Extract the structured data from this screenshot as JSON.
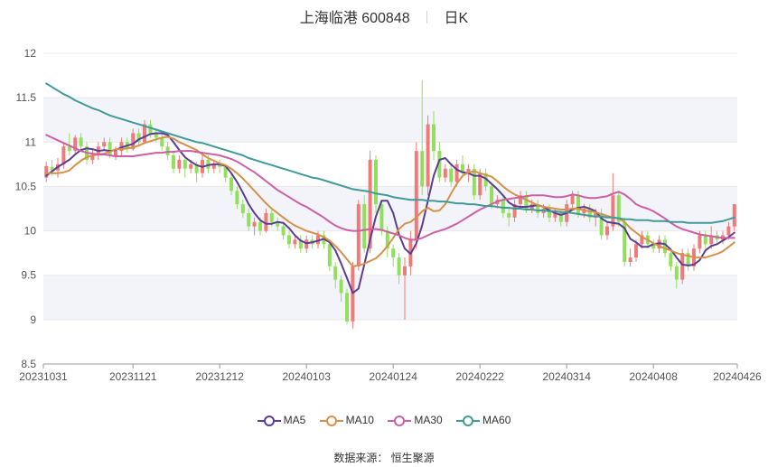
{
  "header": {
    "stock_name": "上海临港",
    "stock_code": "600848",
    "period": "日K"
  },
  "legend": [
    {
      "name": "MA5",
      "color": "#5b3d93"
    },
    {
      "name": "MA10",
      "color": "#d6904a"
    },
    {
      "name": "MA30",
      "color": "#cc5fa6"
    },
    {
      "name": "MA60",
      "color": "#3f9a99"
    }
  ],
  "footer": {
    "source_label": "数据来源：",
    "source_value": "恒生聚源"
  },
  "colors": {
    "up": "#f07a7a",
    "down": "#91e05c",
    "grid": "#e8e8e8",
    "band": "#f3f4f9"
  },
  "chart_data": {
    "type": "candlestick",
    "ylim": [
      8.5,
      12
    ],
    "yticks": [
      "8.5",
      "9",
      "9.5",
      "10",
      "10.5",
      "11",
      "11.5",
      "12"
    ],
    "x_labels": [
      {
        "index": 0,
        "label": "20231031"
      },
      {
        "index": 15,
        "label": "20231121"
      },
      {
        "index": 30,
        "label": "20231212"
      },
      {
        "index": 45,
        "label": "20240103"
      },
      {
        "index": 60,
        "label": "20240124"
      },
      {
        "index": 75,
        "label": "20240222"
      },
      {
        "index": 90,
        "label": "20240314"
      },
      {
        "index": 105,
        "label": "20240408"
      },
      {
        "index": 119,
        "label": "20240426"
      }
    ],
    "candles": [
      [
        10.6,
        10.73,
        10.55,
        10.78
      ],
      [
        10.72,
        10.68,
        10.62,
        10.8
      ],
      [
        10.68,
        10.75,
        10.6,
        10.82
      ],
      [
        10.75,
        10.95,
        10.7,
        11.0
      ],
      [
        10.95,
        10.9,
        10.85,
        11.1
      ],
      [
        10.9,
        11.05,
        10.85,
        11.08
      ],
      [
        11.05,
        10.95,
        10.9,
        11.1
      ],
      [
        10.95,
        10.8,
        10.75,
        11.0
      ],
      [
        10.8,
        10.85,
        10.75,
        10.92
      ],
      [
        10.85,
        10.95,
        10.8,
        11.0
      ],
      [
        10.95,
        11.0,
        10.9,
        11.05
      ],
      [
        11.0,
        10.85,
        10.82,
        11.05
      ],
      [
        10.85,
        10.9,
        10.8,
        10.95
      ],
      [
        10.9,
        11.0,
        10.85,
        11.05
      ],
      [
        11.0,
        10.92,
        10.88,
        11.05
      ],
      [
        10.92,
        11.1,
        10.9,
        11.15
      ],
      [
        11.1,
        11.0,
        10.95,
        11.15
      ],
      [
        11.0,
        11.2,
        10.98,
        11.25
      ],
      [
        11.2,
        11.1,
        11.05,
        11.25
      ],
      [
        11.1,
        11.05,
        11.0,
        11.15
      ],
      [
        11.05,
        10.95,
        10.9,
        11.1
      ],
      [
        10.95,
        10.85,
        10.8,
        11.0
      ],
      [
        10.85,
        10.7,
        10.65,
        10.9
      ],
      [
        10.7,
        10.8,
        10.65,
        10.85
      ],
      [
        10.8,
        10.7,
        10.6,
        10.82
      ],
      [
        10.7,
        10.75,
        10.65,
        10.8
      ],
      [
        10.75,
        10.65,
        10.55,
        10.78
      ],
      [
        10.65,
        10.8,
        10.6,
        10.85
      ],
      [
        10.8,
        10.7,
        10.65,
        10.85
      ],
      [
        10.7,
        10.75,
        10.65,
        10.8
      ],
      [
        10.75,
        10.72,
        10.65,
        10.8
      ],
      [
        10.72,
        10.6,
        10.55,
        10.75
      ],
      [
        10.6,
        10.45,
        10.4,
        10.65
      ],
      [
        10.45,
        10.3,
        10.25,
        10.5
      ],
      [
        10.3,
        10.2,
        10.15,
        10.35
      ],
      [
        10.2,
        10.05,
        10.0,
        10.25
      ],
      [
        10.05,
        10.1,
        9.95,
        10.15
      ],
      [
        10.1,
        10.0,
        9.95,
        10.15
      ],
      [
        10.0,
        10.2,
        9.98,
        10.25
      ],
      [
        10.2,
        10.1,
        10.05,
        10.25
      ],
      [
        10.1,
        10.05,
        10.0,
        10.15
      ],
      [
        10.05,
        9.95,
        9.9,
        10.1
      ],
      [
        9.95,
        9.85,
        9.8,
        10.0
      ],
      [
        9.85,
        9.9,
        9.8,
        9.95
      ],
      [
        9.9,
        9.8,
        9.75,
        9.95
      ],
      [
        9.8,
        9.9,
        9.75,
        9.95
      ],
      [
        9.9,
        9.85,
        9.8,
        9.95
      ],
      [
        9.85,
        9.95,
        9.8,
        10.0
      ],
      [
        9.95,
        9.85,
        9.8,
        10.0
      ],
      [
        9.85,
        9.6,
        9.55,
        9.9
      ],
      [
        9.6,
        9.45,
        9.35,
        9.65
      ],
      [
        9.45,
        9.3,
        9.2,
        9.5
      ],
      [
        9.3,
        8.98,
        8.95,
        9.35
      ],
      [
        8.98,
        9.6,
        8.9,
        9.65
      ],
      [
        9.6,
        10.3,
        9.55,
        10.35
      ],
      [
        10.3,
        9.8,
        9.75,
        10.4
      ],
      [
        9.8,
        10.8,
        9.75,
        10.9
      ],
      [
        10.8,
        10.3,
        10.2,
        10.85
      ],
      [
        10.3,
        10.0,
        9.95,
        10.35
      ],
      [
        10.0,
        9.8,
        9.7,
        10.05
      ],
      [
        9.8,
        9.7,
        9.6,
        9.85
      ],
      [
        9.7,
        9.5,
        9.4,
        9.75
      ],
      [
        9.5,
        9.6,
        9.0,
        9.7
      ],
      [
        9.6,
        9.9,
        9.5,
        10.0
      ],
      [
        9.9,
        10.9,
        9.8,
        11.0
      ],
      [
        10.9,
        10.5,
        10.4,
        11.7
      ],
      [
        10.5,
        11.2,
        10.4,
        11.3
      ],
      [
        11.2,
        10.9,
        10.8,
        11.35
      ],
      [
        10.9,
        10.6,
        10.55,
        11.0
      ],
      [
        10.6,
        10.7,
        10.55,
        10.75
      ],
      [
        10.7,
        10.55,
        10.5,
        10.75
      ],
      [
        10.55,
        10.75,
        10.5,
        10.8
      ],
      [
        10.75,
        10.65,
        10.6,
        10.85
      ],
      [
        10.65,
        10.7,
        10.55,
        10.75
      ],
      [
        10.7,
        10.4,
        10.35,
        10.75
      ],
      [
        10.4,
        10.65,
        10.35,
        10.7
      ],
      [
        10.65,
        10.5,
        10.45,
        10.7
      ],
      [
        10.5,
        10.3,
        10.25,
        10.55
      ],
      [
        10.3,
        10.35,
        10.25,
        10.4
      ],
      [
        10.35,
        10.2,
        10.15,
        10.4
      ],
      [
        10.2,
        10.15,
        10.05,
        10.25
      ],
      [
        10.15,
        10.3,
        10.1,
        10.35
      ],
      [
        10.3,
        10.4,
        10.25,
        10.45
      ],
      [
        10.4,
        10.25,
        10.2,
        10.45
      ],
      [
        10.25,
        10.3,
        10.2,
        10.35
      ],
      [
        10.3,
        10.2,
        10.15,
        10.35
      ],
      [
        10.2,
        10.25,
        10.15,
        10.3
      ],
      [
        10.25,
        10.15,
        10.1,
        10.3
      ],
      [
        10.15,
        10.2,
        10.1,
        10.25
      ],
      [
        10.2,
        10.1,
        10.05,
        10.25
      ],
      [
        10.1,
        10.3,
        10.05,
        10.35
      ],
      [
        10.3,
        10.4,
        10.25,
        10.45
      ],
      [
        10.4,
        10.2,
        10.15,
        10.45
      ],
      [
        10.2,
        10.25,
        10.15,
        10.3
      ],
      [
        10.25,
        10.15,
        10.1,
        10.3
      ],
      [
        10.15,
        10.2,
        10.05,
        10.25
      ],
      [
        10.2,
        9.95,
        9.9,
        10.25
      ],
      [
        9.95,
        10.05,
        9.9,
        10.1
      ],
      [
        10.05,
        10.4,
        10.0,
        10.65
      ],
      [
        10.4,
        10.1,
        10.05,
        10.45
      ],
      [
        10.1,
        9.65,
        9.6,
        10.15
      ],
      [
        9.65,
        9.7,
        9.6,
        9.8
      ],
      [
        9.7,
        9.85,
        9.65,
        9.9
      ],
      [
        9.85,
        9.95,
        9.8,
        10.0
      ],
      [
        9.95,
        9.85,
        9.8,
        10.0
      ],
      [
        9.85,
        9.8,
        9.75,
        9.9
      ],
      [
        9.8,
        9.9,
        9.75,
        9.95
      ],
      [
        9.9,
        9.75,
        9.7,
        9.95
      ],
      [
        9.75,
        9.6,
        9.55,
        9.8
      ],
      [
        9.6,
        9.45,
        9.35,
        9.65
      ],
      [
        9.45,
        9.75,
        9.4,
        9.8
      ],
      [
        9.75,
        9.6,
        9.55,
        9.8
      ],
      [
        9.6,
        9.8,
        9.55,
        9.85
      ],
      [
        9.8,
        9.95,
        9.75,
        10.0
      ],
      [
        9.95,
        9.85,
        9.8,
        10.0
      ],
      [
        9.85,
        9.95,
        9.8,
        10.05
      ],
      [
        9.95,
        9.9,
        9.85,
        10.0
      ],
      [
        9.9,
        9.95,
        9.85,
        10.0
      ],
      [
        9.95,
        10.05,
        9.9,
        10.1
      ],
      [
        10.05,
        10.3,
        10.0,
        10.3
      ]
    ],
    "series": [
      {
        "name": "MA5",
        "color": "#5b3d93",
        "values": [
          10.62,
          10.67,
          10.72,
          10.76,
          10.8,
          10.86,
          10.91,
          10.93,
          10.92,
          10.9,
          10.91,
          10.9,
          10.91,
          10.94,
          10.96,
          10.98,
          11.03,
          11.06,
          11.09,
          11.1,
          11.1,
          11.08,
          11.0,
          10.91,
          10.83,
          10.78,
          10.74,
          10.72,
          10.74,
          10.75,
          10.75,
          10.73,
          10.65,
          10.55,
          10.43,
          10.3,
          10.2,
          10.12,
          10.08,
          10.08,
          10.1,
          10.09,
          10.03,
          9.95,
          9.89,
          9.86,
          9.87,
          9.89,
          9.91,
          9.87,
          9.78,
          9.63,
          9.47,
          9.3,
          9.35,
          9.62,
          9.9,
          10.16,
          10.34,
          10.34,
          10.2,
          9.96,
          9.8,
          9.74,
          9.86,
          10.06,
          10.34,
          10.62,
          10.8,
          10.82,
          10.75,
          10.69,
          10.66,
          10.65,
          10.62,
          10.62,
          10.59,
          10.53,
          10.47,
          10.4,
          10.32,
          10.28,
          10.27,
          10.27,
          10.28,
          10.29,
          10.27,
          10.23,
          10.2,
          10.18,
          10.2,
          10.24,
          10.26,
          10.27,
          10.25,
          10.22,
          10.14,
          10.1,
          10.09,
          10.08,
          10.03,
          9.91,
          9.87,
          9.82,
          9.82,
          9.85,
          9.86,
          9.85,
          9.79,
          9.7,
          9.62,
          9.61,
          9.62,
          9.67,
          9.78,
          9.83,
          9.85,
          9.89,
          9.93,
          9.98
        ]
      },
      {
        "name": "MA10",
        "color": "#d6904a",
        "values": [
          10.65,
          10.65,
          10.65,
          10.66,
          10.68,
          10.74,
          10.79,
          10.83,
          10.85,
          10.86,
          10.87,
          10.89,
          10.92,
          10.92,
          10.93,
          10.94,
          10.96,
          10.99,
          11.01,
          11.03,
          11.05,
          11.06,
          11.04,
          11.0,
          10.97,
          10.94,
          10.91,
          10.86,
          10.82,
          10.79,
          10.76,
          10.74,
          10.7,
          10.65,
          10.59,
          10.52,
          10.45,
          10.38,
          10.31,
          10.25,
          10.2,
          10.15,
          10.1,
          10.06,
          10.03,
          10.0,
          9.98,
          9.96,
          9.93,
          9.89,
          9.83,
          9.76,
          9.68,
          9.6,
          9.61,
          9.63,
          9.66,
          9.69,
          9.75,
          9.83,
          9.92,
          10.02,
          10.08,
          10.1,
          10.15,
          10.22,
          10.26,
          10.22,
          10.23,
          10.3,
          10.42,
          10.53,
          10.62,
          10.66,
          10.67,
          10.65,
          10.63,
          10.61,
          10.56,
          10.5,
          10.45,
          10.41,
          10.38,
          10.35,
          10.32,
          10.29,
          10.27,
          10.26,
          10.25,
          10.24,
          10.24,
          10.25,
          10.25,
          10.23,
          10.22,
          10.21,
          10.19,
          10.17,
          10.15,
          10.14,
          10.1,
          10.03,
          9.98,
          9.93,
          9.9,
          9.86,
          9.83,
          9.8,
          9.78,
          9.75,
          9.73,
          9.72,
          9.7,
          9.7,
          9.7,
          9.72,
          9.74,
          9.77,
          9.82,
          9.87
        ]
      },
      {
        "name": "MA30",
        "color": "#cc5fa6",
        "values": [
          11.08,
          11.05,
          11.02,
          10.99,
          10.96,
          10.93,
          10.9,
          10.88,
          10.87,
          10.86,
          10.86,
          10.85,
          10.84,
          10.84,
          10.84,
          10.84,
          10.85,
          10.86,
          10.87,
          10.88,
          10.88,
          10.89,
          10.89,
          10.9,
          10.9,
          10.9,
          10.89,
          10.88,
          10.87,
          10.86,
          10.85,
          10.83,
          10.81,
          10.78,
          10.74,
          10.7,
          10.66,
          10.61,
          10.56,
          10.51,
          10.46,
          10.42,
          10.38,
          10.34,
          10.3,
          10.27,
          10.23,
          10.19,
          10.15,
          10.1,
          10.06,
          10.03,
          10.01,
          10.0,
          10.0,
          10.01,
          10.02,
          10.02,
          10.01,
          9.99,
          9.97,
          9.95,
          9.92,
          9.9,
          9.9,
          9.92,
          9.95,
          9.98,
          10.0,
          10.02,
          10.05,
          10.08,
          10.12,
          10.16,
          10.2,
          10.24,
          10.27,
          10.3,
          10.33,
          10.35,
          10.36,
          10.37,
          10.38,
          10.39,
          10.4,
          10.4,
          10.4,
          10.39,
          10.38,
          10.38,
          10.39,
          10.41,
          10.4,
          10.38,
          10.37,
          10.37,
          10.38,
          10.39,
          10.42,
          10.44,
          10.41,
          10.36,
          10.3,
          10.27,
          10.25,
          10.22,
          10.18,
          10.14,
          10.09,
          10.05,
          10.02,
          10.0,
          9.98,
          9.96,
          9.95,
          9.94,
          9.93,
          9.92,
          9.92,
          9.92
        ]
      },
      {
        "name": "MA60",
        "color": "#3f9a99",
        "values": [
          11.66,
          11.62,
          11.58,
          11.54,
          11.51,
          11.47,
          11.44,
          11.41,
          11.38,
          11.36,
          11.33,
          11.3,
          11.28,
          11.26,
          11.24,
          11.22,
          11.2,
          11.18,
          11.16,
          11.14,
          11.12,
          11.1,
          11.08,
          11.06,
          11.04,
          11.02,
          11.0,
          10.99,
          10.97,
          10.95,
          10.93,
          10.91,
          10.89,
          10.87,
          10.85,
          10.82,
          10.8,
          10.78,
          10.76,
          10.74,
          10.72,
          10.7,
          10.68,
          10.66,
          10.64,
          10.62,
          10.6,
          10.59,
          10.57,
          10.55,
          10.53,
          10.51,
          10.49,
          10.47,
          10.46,
          10.45,
          10.44,
          10.42,
          10.41,
          10.4,
          10.38,
          10.37,
          10.36,
          10.35,
          10.35,
          10.35,
          10.34,
          10.34,
          10.33,
          10.33,
          10.32,
          10.31,
          10.31,
          10.3,
          10.3,
          10.29,
          10.28,
          10.28,
          10.27,
          10.26,
          10.26,
          10.25,
          10.25,
          10.24,
          10.24,
          10.23,
          10.23,
          10.22,
          10.22,
          10.21,
          10.21,
          10.2,
          10.19,
          10.18,
          10.17,
          10.16,
          10.16,
          10.15,
          10.15,
          10.14,
          10.13,
          10.13,
          10.12,
          10.12,
          10.12,
          10.11,
          10.11,
          10.11,
          10.1,
          10.1,
          10.1,
          10.09,
          10.09,
          10.09,
          10.09,
          10.09,
          10.1,
          10.11,
          10.13,
          10.15
        ]
      }
    ]
  }
}
